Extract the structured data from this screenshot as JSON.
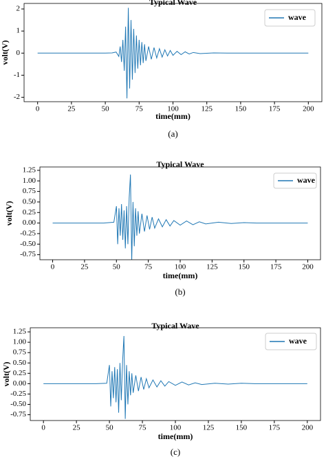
{
  "chart_data": [
    {
      "type": "line",
      "title": "Typical Wave",
      "x_label": "time(mm)",
      "y_label": "volt(V)",
      "caption": "(a)",
      "x": [
        0,
        10,
        20,
        30,
        40,
        50,
        55,
        58,
        60,
        61,
        62,
        63,
        64,
        65,
        66,
        67,
        68,
        69,
        70,
        71,
        72,
        73,
        74,
        75,
        76,
        77,
        78,
        79,
        80,
        82,
        84,
        86,
        88,
        90,
        92,
        94,
        96,
        98,
        100,
        103,
        106,
        109,
        112,
        115,
        120,
        130,
        140,
        150,
        160,
        170,
        180,
        190,
        200
      ],
      "series": [
        {
          "name": "wave",
          "color": "#1f77b4",
          "values": [
            0,
            0,
            0,
            0,
            0,
            0,
            0.01,
            0.05,
            -0.15,
            0.3,
            -0.4,
            0.6,
            -0.8,
            1.2,
            -2.05,
            2.05,
            -1.6,
            1.5,
            -1.2,
            1.1,
            -0.9,
            0.8,
            -0.7,
            0.6,
            -0.55,
            0.5,
            -0.45,
            0.4,
            -0.35,
            0.3,
            -0.28,
            0.25,
            -0.22,
            0.2,
            -0.18,
            0.15,
            -0.13,
            0.12,
            -0.1,
            0.08,
            -0.07,
            0.06,
            -0.04,
            0.03,
            -0.02,
            0.01,
            0,
            0,
            0,
            0,
            0,
            0,
            0
          ]
        }
      ],
      "xlim": [
        -10,
        210
      ],
      "ylim": [
        -2.2,
        2.25
      ],
      "xticks": [
        0,
        25,
        50,
        75,
        100,
        125,
        150,
        175,
        200
      ],
      "yticks": [
        -2,
        -1,
        0,
        1,
        2
      ],
      "legend": "upper right"
    },
    {
      "type": "line",
      "title": "Typical Wave",
      "x_label": "time(mm)",
      "y_label": "volt(V)",
      "caption": "(b)",
      "x": [
        0,
        10,
        20,
        30,
        40,
        48,
        50,
        51,
        52,
        53,
        54,
        55,
        56,
        57,
        58,
        59,
        60,
        61,
        62,
        63,
        64,
        65,
        66,
        67,
        68,
        70,
        72,
        74,
        76,
        78,
        80,
        83,
        86,
        89,
        92,
        95,
        100,
        105,
        110,
        115,
        120,
        130,
        140,
        150,
        160,
        170,
        180,
        190,
        200
      ],
      "series": [
        {
          "name": "wave",
          "color": "#1f77b4",
          "values": [
            0,
            0,
            0,
            0,
            0,
            0.02,
            0.4,
            -0.5,
            0.35,
            -0.3,
            0.45,
            -0.4,
            0.3,
            -0.6,
            0.4,
            -0.5,
            0.6,
            1.15,
            -0.9,
            0.5,
            -0.55,
            0.35,
            -0.3,
            0.28,
            -0.25,
            0.22,
            -0.2,
            0.18,
            -0.15,
            0.14,
            -0.12,
            0.1,
            -0.09,
            0.08,
            -0.07,
            0.06,
            -0.05,
            0.05,
            -0.04,
            0.03,
            -0.02,
            0.02,
            -0.01,
            0.01,
            0,
            0,
            0,
            0,
            0
          ]
        }
      ],
      "xlim": [
        -10,
        210
      ],
      "ylim": [
        -0.87,
        1.33
      ],
      "xticks": [
        0,
        25,
        50,
        75,
        100,
        125,
        150,
        175,
        200
      ],
      "yticks": [
        -0.75,
        {
          "value": -0.5,
          "label": "-0.50"
        },
        -0.25,
        {
          "value": 0,
          "label": "0.00"
        },
        0.25,
        {
          "value": 0.5,
          "label": "0.50"
        },
        0.75,
        {
          "value": 1,
          "label": "1.00"
        },
        1.25
      ],
      "legend": "upper right"
    },
    {
      "type": "line",
      "title": "Typical Wave",
      "x_label": "time(mm)",
      "y_label": "volt(V)",
      "caption": "(c)",
      "x": [
        0,
        10,
        20,
        30,
        40,
        48,
        50,
        51,
        52,
        53,
        54,
        55,
        56,
        57,
        58,
        59,
        60,
        61,
        62,
        63,
        64,
        65,
        66,
        67,
        68,
        70,
        72,
        74,
        76,
        78,
        80,
        83,
        86,
        89,
        92,
        95,
        100,
        105,
        110,
        115,
        120,
        130,
        140,
        150,
        160,
        170,
        180,
        190,
        200
      ],
      "series": [
        {
          "name": "wave",
          "color": "#1f77b4",
          "values": [
            0,
            0,
            0,
            0,
            0,
            0.01,
            0.45,
            -0.55,
            0.3,
            -0.35,
            0.4,
            -0.45,
            0.35,
            -0.7,
            0.5,
            -0.4,
            0.55,
            1.15,
            -0.85,
            0.45,
            -0.5,
            0.3,
            -0.28,
            0.25,
            -0.22,
            0.2,
            -0.18,
            0.16,
            -0.14,
            0.12,
            -0.1,
            0.09,
            -0.08,
            0.07,
            -0.06,
            0.05,
            -0.04,
            0.04,
            -0.03,
            0.02,
            -0.02,
            0.01,
            -0.01,
            0.01,
            0,
            0,
            0,
            0,
            0
          ]
        }
      ],
      "xlim": [
        -10,
        210
      ],
      "ylim": [
        -0.89,
        1.35
      ],
      "xticks": [
        0,
        25,
        50,
        75,
        100,
        125,
        150,
        175,
        200
      ],
      "yticks": [
        -0.75,
        {
          "value": -0.5,
          "label": "-0.50"
        },
        -0.25,
        {
          "value": 0,
          "label": "0.00"
        },
        0.25,
        {
          "value": 0.5,
          "label": "0.50"
        },
        0.75,
        {
          "value": 1,
          "label": "1.00"
        },
        1.25
      ],
      "legend": "upper right"
    }
  ]
}
